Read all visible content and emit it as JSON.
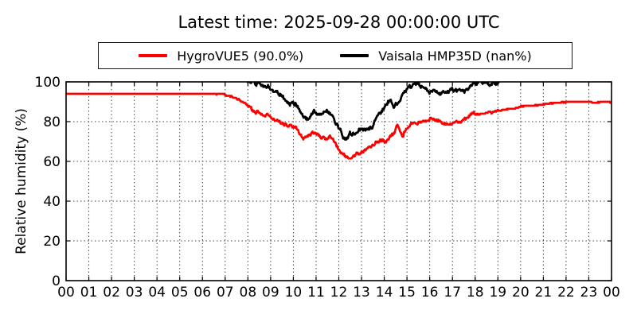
{
  "title": "Latest time: 2025-09-28 00:00:00 UTC",
  "chart_data": {
    "type": "line",
    "title": "Latest time: 2025-09-28 00:00:00 UTC",
    "xlabel": "",
    "ylabel": "Relative humidity (%)",
    "xlim": [
      0,
      24
    ],
    "ylim": [
      0,
      100
    ],
    "x_tick_labels": [
      "00",
      "01",
      "02",
      "03",
      "04",
      "05",
      "06",
      "07",
      "08",
      "09",
      "10",
      "11",
      "12",
      "13",
      "14",
      "15",
      "16",
      "17",
      "18",
      "19",
      "20",
      "21",
      "22",
      "23",
      "00"
    ],
    "y_ticks": [
      0,
      20,
      40,
      60,
      80,
      100
    ],
    "grid": "dotted",
    "grid_color": "#444444",
    "legend_position": "top-center",
    "series": [
      {
        "name": "HygroVUE5",
        "legend_label": "HygroVUE5 (90.0%)",
        "color": "#ff0000",
        "latest_value": "90.0%",
        "points_hour_pct": [
          [
            0,
            94
          ],
          [
            6.4,
            94
          ],
          [
            6.7,
            93.8
          ],
          [
            7.0,
            93.4
          ],
          [
            7.3,
            92.5
          ],
          [
            7.6,
            91.2
          ],
          [
            7.9,
            89
          ],
          [
            8.1,
            86.5
          ],
          [
            8.3,
            84.5
          ],
          [
            8.5,
            85
          ],
          [
            8.7,
            83.5
          ],
          [
            9.0,
            82.5
          ],
          [
            9.2,
            81
          ],
          [
            9.4,
            80
          ],
          [
            9.6,
            78.5
          ],
          [
            9.8,
            77.5
          ],
          [
            10.0,
            77.5
          ],
          [
            10.2,
            76.5
          ],
          [
            10.35,
            72.5
          ],
          [
            10.5,
            71.5
          ],
          [
            10.65,
            72.5
          ],
          [
            10.85,
            74.5
          ],
          [
            11.05,
            74
          ],
          [
            11.2,
            72
          ],
          [
            11.4,
            71
          ],
          [
            11.6,
            72.5
          ],
          [
            11.8,
            70
          ],
          [
            12.0,
            66
          ],
          [
            12.2,
            63.5
          ],
          [
            12.4,
            62
          ],
          [
            12.6,
            62.5
          ],
          [
            12.8,
            64
          ],
          [
            13.0,
            64
          ],
          [
            13.2,
            65.5
          ],
          [
            13.4,
            67.5
          ],
          [
            13.6,
            69
          ],
          [
            13.8,
            70
          ],
          [
            14.0,
            70.5
          ],
          [
            14.2,
            71.5
          ],
          [
            14.4,
            73
          ],
          [
            14.6,
            78
          ],
          [
            14.8,
            73.5
          ],
          [
            15.1,
            78
          ],
          [
            15.3,
            79.5
          ],
          [
            15.55,
            79.5
          ],
          [
            15.8,
            80
          ],
          [
            16.05,
            82
          ],
          [
            16.3,
            80.5
          ],
          [
            16.6,
            79
          ],
          [
            16.9,
            79.5
          ],
          [
            17.2,
            80
          ],
          [
            17.5,
            80.5
          ],
          [
            17.8,
            83.5
          ],
          [
            18.1,
            84
          ],
          [
            18.5,
            84
          ],
          [
            18.9,
            85
          ],
          [
            19.2,
            86
          ],
          [
            19.6,
            86.5
          ],
          [
            20.0,
            87.5
          ],
          [
            20.4,
            88
          ],
          [
            20.8,
            88.5
          ],
          [
            21.2,
            89
          ],
          [
            21.6,
            89.5
          ],
          [
            22.0,
            90
          ],
          [
            22.5,
            90
          ],
          [
            22.8,
            89.5
          ],
          [
            23.0,
            90
          ],
          [
            23.3,
            89.5
          ],
          [
            23.6,
            90
          ],
          [
            24,
            90
          ]
        ]
      },
      {
        "name": "Vaisala HMP35D",
        "legend_label": "Vaisala HMP35D (nan%)",
        "color": "#000000",
        "latest_value": "nan%",
        "points_hour_pct": [
          [
            7.95,
            100
          ],
          [
            8.2,
            100
          ],
          [
            8.35,
            98.5
          ],
          [
            8.5,
            99.5
          ],
          [
            8.65,
            98
          ],
          [
            9.0,
            97
          ],
          [
            9.3,
            95
          ],
          [
            9.5,
            92.5
          ],
          [
            9.7,
            89.5
          ],
          [
            10.0,
            89
          ],
          [
            10.2,
            88
          ],
          [
            10.35,
            83.5
          ],
          [
            10.5,
            82
          ],
          [
            10.7,
            81.5
          ],
          [
            10.9,
            85.5
          ],
          [
            11.1,
            84.5
          ],
          [
            11.3,
            83.5
          ],
          [
            11.5,
            85
          ],
          [
            11.7,
            83
          ],
          [
            11.9,
            79
          ],
          [
            12.1,
            75.5
          ],
          [
            12.3,
            70.5
          ],
          [
            12.5,
            74.5
          ],
          [
            12.7,
            73.5
          ],
          [
            12.9,
            75.5
          ],
          [
            13.1,
            76.5
          ],
          [
            13.3,
            75
          ],
          [
            13.5,
            78
          ],
          [
            13.7,
            82
          ],
          [
            13.9,
            85.5
          ],
          [
            14.1,
            88.5
          ],
          [
            14.25,
            91
          ],
          [
            14.4,
            87
          ],
          [
            14.6,
            90
          ],
          [
            14.8,
            93
          ],
          [
            15.0,
            96
          ],
          [
            15.2,
            98
          ],
          [
            15.5,
            99.5
          ],
          [
            15.8,
            96
          ],
          [
            16.1,
            95
          ],
          [
            16.4,
            94
          ],
          [
            16.7,
            95.5
          ],
          [
            17.0,
            96.5
          ],
          [
            17.2,
            96
          ],
          [
            17.4,
            94.5
          ],
          [
            17.7,
            97
          ],
          [
            17.95,
            99
          ],
          [
            18.2,
            100
          ],
          [
            18.45,
            100
          ],
          [
            18.6,
            98.5
          ],
          [
            18.8,
            99.5
          ],
          [
            19.05,
            100
          ]
        ]
      }
    ]
  }
}
